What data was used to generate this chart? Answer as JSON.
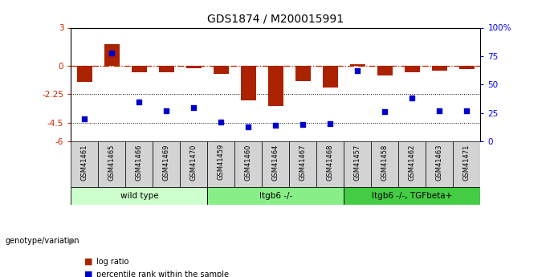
{
  "title": "GDS1874 / M200015991",
  "samples": [
    "GSM41461",
    "GSM41465",
    "GSM41466",
    "GSM41469",
    "GSM41470",
    "GSM41459",
    "GSM41460",
    "GSM41464",
    "GSM41467",
    "GSM41468",
    "GSM41457",
    "GSM41458",
    "GSM41462",
    "GSM41463",
    "GSM41471"
  ],
  "log_ratio": [
    -1.3,
    1.7,
    -0.5,
    -0.5,
    -0.18,
    -0.65,
    -2.75,
    -3.2,
    -1.2,
    -1.75,
    0.1,
    -0.75,
    -0.55,
    -0.38,
    -0.28
  ],
  "percentile_rank": [
    20,
    78,
    35,
    27,
    30,
    17,
    13,
    14,
    15,
    16,
    62,
    26,
    38,
    27,
    27
  ],
  "groups": [
    {
      "label": "wild type",
      "start": 0,
      "end": 5,
      "color": "#ccffcc"
    },
    {
      "label": "Itgb6 -/-",
      "start": 5,
      "end": 10,
      "color": "#88ee88"
    },
    {
      "label": "Itgb6 -/-, TGFbeta+",
      "start": 10,
      "end": 15,
      "color": "#44cc44"
    }
  ],
  "ylim": [
    -6,
    3
  ],
  "yticks": [
    3,
    0,
    -2.25,
    -4.5,
    -6
  ],
  "yticklabels": [
    "3",
    "0",
    "-2.25",
    "-4.5",
    "-6"
  ],
  "right_yticks": [
    100,
    75,
    50,
    25,
    0
  ],
  "right_yticklabels": [
    "100%",
    "75",
    "50",
    "25",
    "0"
  ],
  "bar_color": "#aa2200",
  "dot_color": "#0000cc",
  "bar_width": 0.55,
  "background_color": "#ffffff",
  "sample_box_color": "#d3d3d3"
}
